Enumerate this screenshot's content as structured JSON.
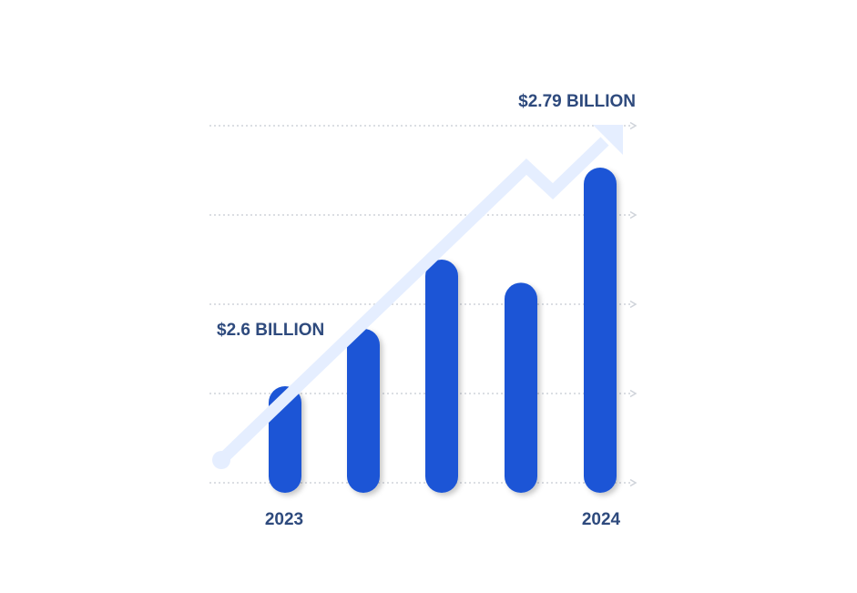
{
  "colors": {
    "bar": "#1a55d6",
    "trend_arrow": "#e5eeff",
    "grid": "#cfd3da",
    "text": "#2e4a7d"
  },
  "chart_data": {
    "type": "bar",
    "categories": [
      "2023",
      "",
      "",
      "",
      "2024"
    ],
    "values": [
      2.6,
      2.65,
      2.71,
      2.69,
      2.79
    ],
    "annotations": {
      "start": "$2.6 BILLION",
      "end": "$2.79 BILLION"
    },
    "grid": true,
    "trend_arrow": true
  }
}
